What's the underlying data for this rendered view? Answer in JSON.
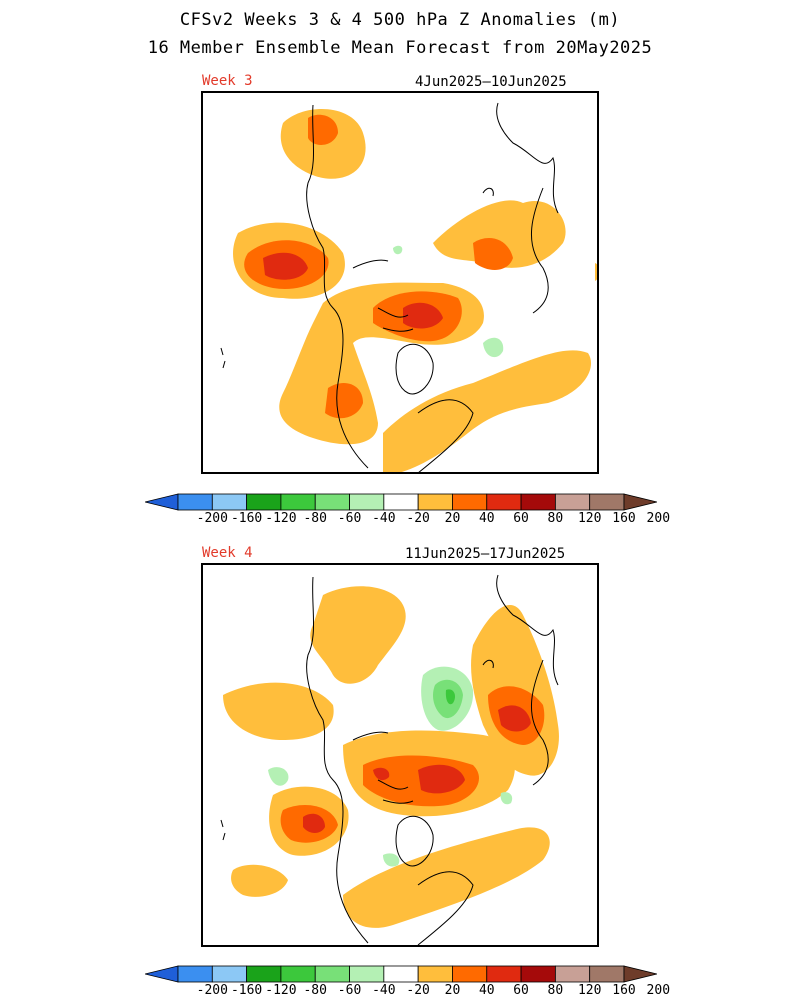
{
  "header": {
    "line1": "CFSv2 Weeks 3 & 4 500 hPa Z Anomalies (m)",
    "line2": "16 Member Ensemble Mean Forecast from 20May2025"
  },
  "panels": [
    {
      "week_label": "Week 3",
      "date_range": "4Jun2025—10Jun2025"
    },
    {
      "week_label": "Week 4",
      "date_range": "11Jun2025—17Jun2025"
    }
  ],
  "colorbar": {
    "labels": [
      "-200",
      "-160",
      "-120",
      "-80",
      "-60",
      "-40",
      "-20",
      "20",
      "40",
      "60",
      "80",
      "120",
      "160",
      "200"
    ],
    "colors": [
      "#1f5fd8",
      "#3b8ff0",
      "#8cc8f5",
      "#1aa31a",
      "#3cc83c",
      "#78e078",
      "#b4f0b4",
      "#ffffff",
      "#ffbe3c",
      "#ff6a00",
      "#e02a10",
      "#a50a0a",
      "#c8a096",
      "#a07868",
      "#6e3c2a"
    ]
  },
  "colors": {
    "c20": "#ffbe3c",
    "c40": "#ff6a00",
    "c60": "#e02a10",
    "cneg20": "#b4f0b4",
    "cneg40": "#78e078",
    "cneg60": "#3cc83c",
    "week_label": "#e23a2a"
  }
}
